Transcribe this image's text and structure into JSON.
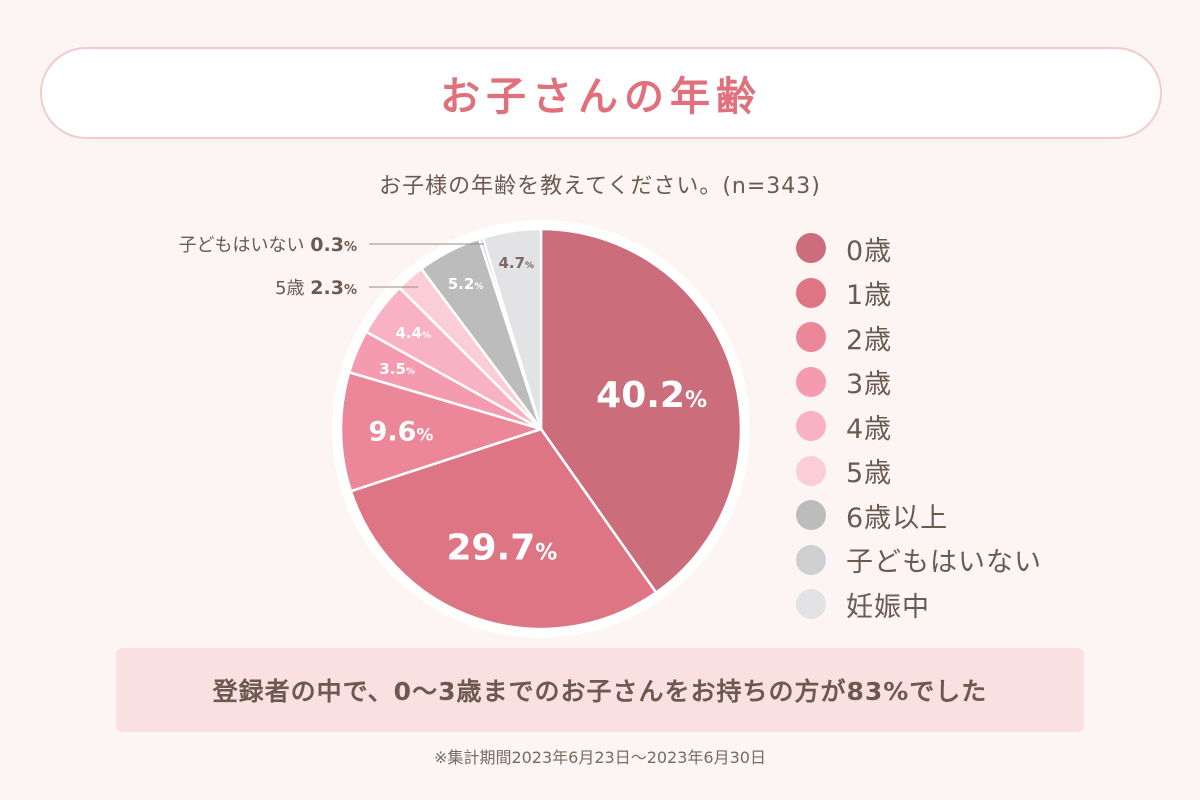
{
  "header": {
    "title": "お子さんの年齢"
  },
  "question": "お子様の年齢を教えてください。(n=343)",
  "colors": {
    "background": "#fcf5f4",
    "title": "#e0707c",
    "pill_border": "#f2cbcd",
    "summary_bg": "#fbe0e1",
    "text": "#6b5a50"
  },
  "chart_data": {
    "type": "pie",
    "title": "お子さんの年齢",
    "subtitle": "お子様の年齢を教えてください。(n=343)",
    "unit": "%",
    "slices": [
      {
        "name": "0歳",
        "value": 40.2,
        "color": "#cc6d7b"
      },
      {
        "name": "1歳",
        "value": 29.7,
        "color": "#de7585"
      },
      {
        "name": "2歳",
        "value": 9.6,
        "color": "#ec8799"
      },
      {
        "name": "3歳",
        "value": 3.5,
        "color": "#f59bb0"
      },
      {
        "name": "4歳",
        "value": 4.4,
        "color": "#f8b2c3"
      },
      {
        "name": "5歳",
        "value": 2.3,
        "color": "#fbcdd7"
      },
      {
        "name": "6歳以上",
        "value": 5.2,
        "color": "#bdbcbd"
      },
      {
        "name": "子どもはいない",
        "value": 0.3,
        "color": "#cfced0"
      },
      {
        "name": "妊娠中",
        "value": 4.7,
        "color": "#e3e2e4"
      }
    ],
    "outside_labels": [
      {
        "name": "子どもはいない",
        "value": "0.3"
      },
      {
        "name": "5歳",
        "value": "2.3"
      }
    ],
    "legend_position": "right"
  },
  "summary": "登録者の中で、0〜3歳までのお子さんをお持ちの方が83%でした",
  "footnote": "※集計期間2023年6月23日〜2023年6月30日"
}
